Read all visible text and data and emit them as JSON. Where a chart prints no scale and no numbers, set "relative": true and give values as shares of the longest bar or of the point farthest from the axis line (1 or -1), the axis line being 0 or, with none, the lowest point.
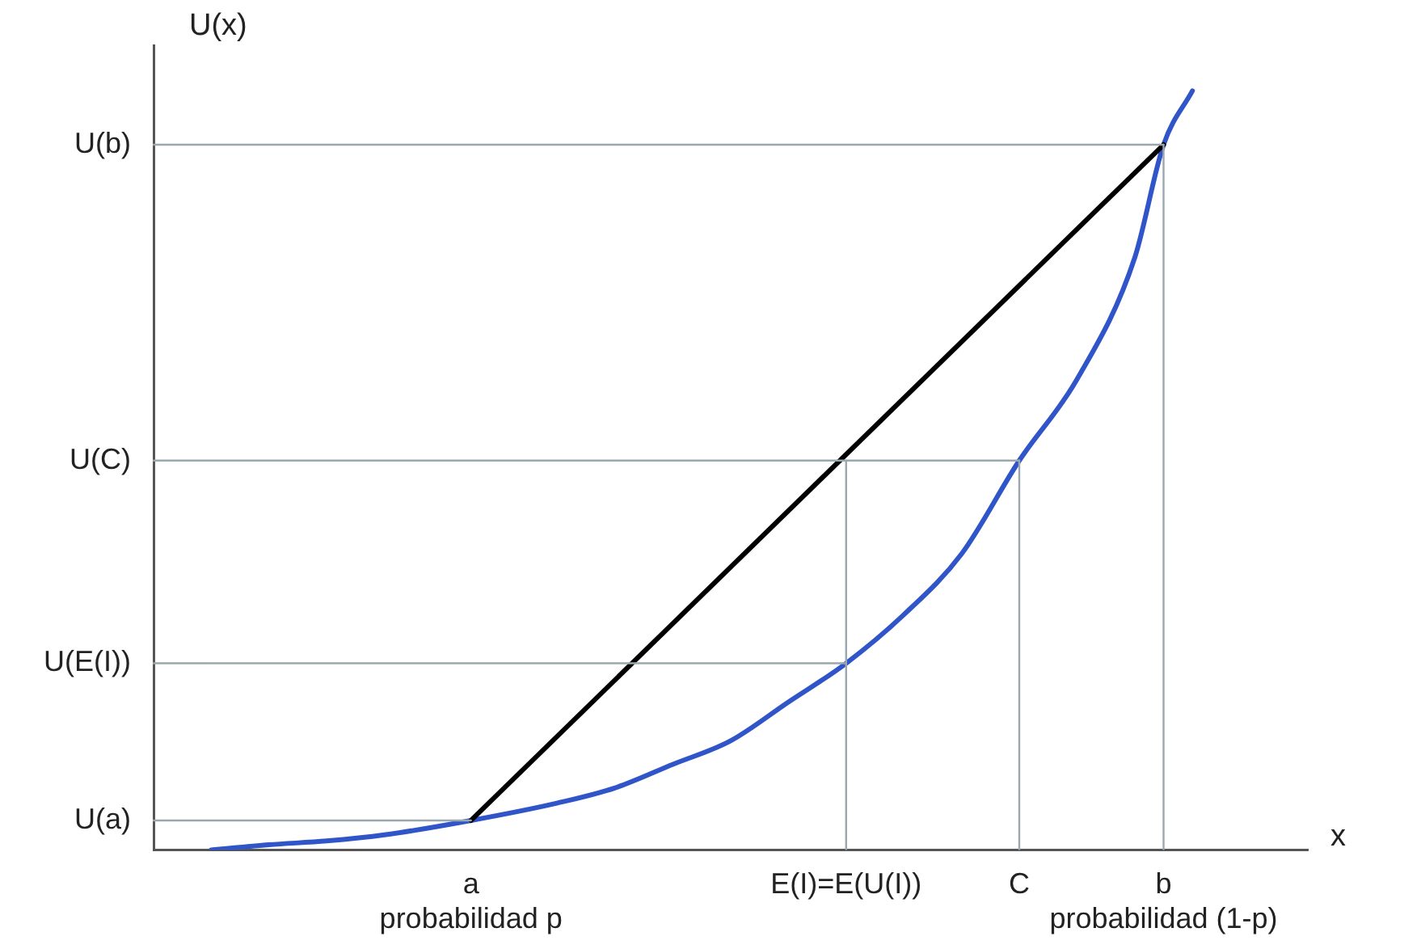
{
  "chart_data": {
    "type": "line",
    "relative": true,
    "xlabel": "x",
    "ylabel": "U(x)",
    "categories": [
      null,
      null,
      null,
      null,
      null,
      null,
      null,
      null,
      null,
      null,
      null,
      "a\nprobabilidad p",
      null,
      null,
      null,
      null,
      null,
      null,
      null,
      null,
      null,
      null,
      null,
      null,
      "E(I)=E(U(I))",
      null,
      null,
      null,
      null,
      null,
      "C",
      null,
      null,
      null,
      null,
      "b\nprobabilidad (1-p)",
      null,
      null,
      null,
      null,
      null
    ],
    "grid": false,
    "legend": false,
    "marker": "none",
    "series": [
      {
        "name": "U(b)",
        "color": "#9aa7ae",
        "values": [
          0.929,
          0.929,
          0.929,
          0.929,
          0.929,
          0.929,
          0.929,
          0.929,
          0.929,
          0.929,
          0.929,
          0.929,
          0.929,
          0.929,
          0.929,
          0.929,
          0.929,
          0.929,
          0.929,
          0.929,
          0.929,
          0.929,
          0.929,
          0.929,
          0.929,
          0.929,
          0.929,
          0.929,
          0.929,
          0.929,
          0.929,
          0.929,
          0.929,
          0.929,
          0.929,
          0.929,
          null,
          null,
          null,
          null,
          null
        ]
      },
      {
        "name": "U(C)",
        "color": "#9aa7ae",
        "values": [
          0.513,
          0.513,
          0.513,
          0.513,
          0.513,
          0.513,
          0.513,
          0.513,
          0.513,
          0.513,
          0.513,
          0.513,
          0.513,
          0.513,
          0.513,
          0.513,
          0.513,
          0.513,
          0.513,
          0.513,
          0.513,
          0.513,
          0.513,
          0.513,
          0.513,
          0.513,
          0.513,
          0.513,
          0.513,
          0.513,
          0.513,
          null,
          null,
          null,
          null,
          null,
          null,
          null,
          null,
          null,
          null
        ]
      },
      {
        "name": "U(E(I))",
        "color": "#9aa7ae",
        "values": [
          0.246,
          0.246,
          0.246,
          0.246,
          0.246,
          0.246,
          0.246,
          0.246,
          0.246,
          0.246,
          0.246,
          0.246,
          0.246,
          0.246,
          0.246,
          0.246,
          0.246,
          0.246,
          0.246,
          0.246,
          0.246,
          0.246,
          0.246,
          0.246,
          0.246,
          null,
          null,
          null,
          null,
          null,
          null,
          null,
          null,
          null,
          null,
          null,
          null,
          null,
          null,
          null,
          null
        ]
      },
      {
        "name": "U(a)",
        "color": "#9aa7ae",
        "values": [
          0.039,
          0.039,
          0.039,
          0.039,
          0.039,
          0.039,
          0.039,
          0.039,
          0.039,
          0.039,
          0.039,
          0.039,
          null,
          null,
          null,
          null,
          null,
          null,
          null,
          null,
          null,
          null,
          null,
          null,
          null,
          null,
          null,
          null,
          null,
          null,
          null,
          null,
          null,
          null,
          null,
          null,
          null,
          null,
          null,
          null,
          null
        ]
      },
      {
        "color": "#9aa7ae",
        "x": [
          "E(I)=E(U(I))",
          "E(I)=E(U(I))"
        ],
        "values": [
          0,
          0.513
        ]
      },
      {
        "color": "#9aa7ae",
        "x": [
          "C",
          "C"
        ],
        "values": [
          0,
          0.513
        ]
      },
      {
        "color": "#9aa7ae",
        "x": [
          "b\nprobabilidad (1-p)",
          "b\nprobabilidad (1-p)"
        ],
        "values": [
          0,
          0.929
        ]
      },
      {
        "color": "#000000",
        "values": [
          null,
          null,
          null,
          null,
          null,
          null,
          null,
          null,
          null,
          null,
          null,
          0.039,
          null,
          null,
          null,
          null,
          null,
          null,
          null,
          null,
          null,
          null,
          null,
          null,
          null,
          null,
          null,
          null,
          null,
          null,
          null,
          null,
          null,
          null,
          null,
          0.929,
          null,
          null,
          null,
          null,
          null
        ]
      },
      {
        "color": "#2f55c8",
        "values": [
          null,
          null,
          0,
          null,
          0.007,
          null,
          0.012,
          null,
          0.02,
          null,
          null,
          0.039,
          null,
          null,
          0.062,
          null,
          0.082,
          null,
          0.113,
          null,
          0.144,
          null,
          0.195,
          null,
          0.246,
          null,
          0.31,
          null,
          0.39,
          null,
          0.513,
          null,
          0.62,
          null,
          0.78,
          0.929,
          1,
          null,
          null,
          null,
          null
        ]
      }
    ]
  }
}
